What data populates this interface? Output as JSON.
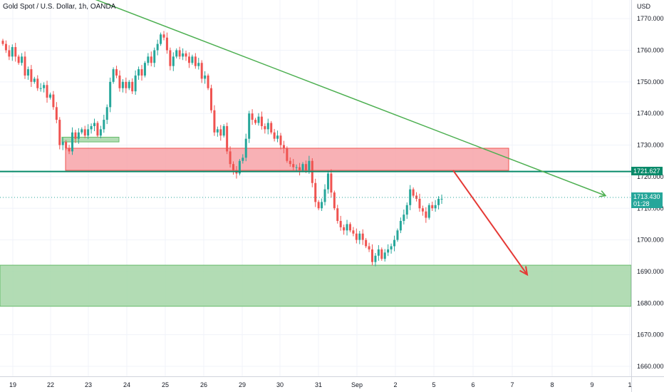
{
  "chart_data": {
    "type": "candlestick",
    "title": "Gold Spot / U.S. Dollar, 1h, OANDA",
    "currency": "USD",
    "x_ticks": [
      "19",
      "22",
      "23",
      "24",
      "25",
      "26",
      "29",
      "30",
      "31",
      "Sep",
      "2",
      "5",
      "6",
      "7",
      "8",
      "9",
      "1"
    ],
    "y_ticks": [
      "1770.000",
      "1760.000",
      "1750.000",
      "1740.000",
      "1730.000",
      "1720.000",
      "1710.000",
      "1700.000",
      "1690.000",
      "1680.000",
      "1670.000",
      "1660.000"
    ],
    "y_range": [
      1656,
      1778
    ],
    "horizontal_line": {
      "price": 1721.627,
      "label": "1721.627",
      "color": "#088a6a"
    },
    "current_price": {
      "price": 1713.43,
      "label": "1713.430",
      "countdown": "01:28",
      "color": "#26a69a"
    },
    "zones": [
      {
        "name": "resistance-zone",
        "from": 1722,
        "to": 1729,
        "color": "#f7a3a8"
      },
      {
        "name": "support-zone",
        "from": 1679,
        "to": 1692,
        "color": "#a5d6a7"
      },
      {
        "name": "small-support-zone",
        "from": 1731,
        "to": 1732.5,
        "color": "#a5d6a7"
      }
    ],
    "trendline": {
      "from_price": 1779,
      "to_price": 1714,
      "color": "#4caf50"
    },
    "arrow": {
      "from_price": 1722,
      "to_price": 1689,
      "color": "#e53935"
    },
    "up_color": "#26a69a",
    "down_color": "#ef5350",
    "closes": [
      1762,
      1760,
      1758,
      1761,
      1758,
      1756,
      1758,
      1752,
      1754,
      1750,
      1751,
      1748,
      1748,
      1749,
      1745,
      1746,
      1742,
      1738,
      1730,
      1731,
      1729,
      1728,
      1734,
      1732,
      1734,
      1735,
      1733,
      1735,
      1736,
      1737,
      1733,
      1735,
      1738,
      1742,
      1750,
      1754,
      1752,
      1748,
      1750,
      1748,
      1750,
      1747,
      1752,
      1754,
      1752,
      1756,
      1758,
      1756,
      1760,
      1762,
      1765,
      1764,
      1760,
      1755,
      1758,
      1760,
      1758,
      1759,
      1758,
      1756,
      1758,
      1755,
      1756,
      1751,
      1752,
      1748,
      1741,
      1734,
      1735,
      1733,
      1736,
      1728,
      1724,
      1722,
      1721,
      1725,
      1726,
      1732,
      1740,
      1738,
      1737,
      1739,
      1736,
      1735,
      1737,
      1734,
      1732,
      1733,
      1730,
      1729,
      1725,
      1724,
      1723,
      1723,
      1722,
      1724,
      1722,
      1725,
      1718,
      1712,
      1710,
      1712,
      1716,
      1721,
      1715,
      1710,
      1706,
      1704,
      1703,
      1705,
      1703,
      1702,
      1700,
      1702,
      1700,
      1698,
      1697,
      1693,
      1695,
      1697,
      1694,
      1696,
      1697,
      1698,
      1700,
      1703,
      1706,
      1708,
      1711,
      1716,
      1714,
      1713,
      1710,
      1709,
      1707,
      1711,
      1710,
      1711,
      1713,
      1713
    ]
  }
}
